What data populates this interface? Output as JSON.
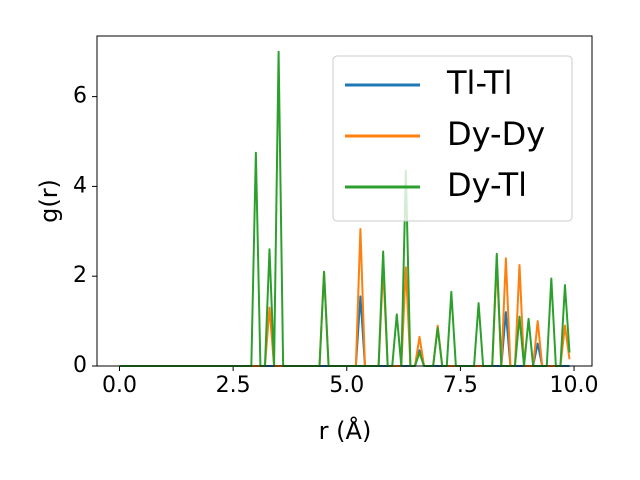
{
  "chart_data": {
    "type": "line",
    "xlabel": "r (Å)",
    "ylabel": "g(r)",
    "x": [
      0,
      0.1,
      0.2,
      0.3,
      0.4,
      0.5,
      0.6,
      0.7,
      0.8,
      0.9,
      1,
      1.1,
      1.2,
      1.3,
      1.4,
      1.5,
      1.6,
      1.7,
      1.8,
      1.9,
      2,
      2.1,
      2.2,
      2.3,
      2.4,
      2.5,
      2.6,
      2.7,
      2.8,
      2.9,
      3,
      3.1,
      3.2,
      3.3,
      3.4,
      3.5,
      3.6,
      3.7,
      3.8,
      3.9,
      4,
      4.1,
      4.2,
      4.3,
      4.4,
      4.5,
      4.6,
      4.7,
      4.8,
      4.9,
      5,
      5.1,
      5.2,
      5.3,
      5.4,
      5.5,
      5.6,
      5.7,
      5.8,
      5.9,
      6,
      6.1,
      6.2,
      6.3,
      6.4,
      6.5,
      6.6,
      6.7,
      6.8,
      6.9,
      7,
      7.1,
      7.2,
      7.3,
      7.4,
      7.5,
      7.6,
      7.7,
      7.8,
      7.9,
      8,
      8.1,
      8.2,
      8.3,
      8.4,
      8.5,
      8.6,
      8.7,
      8.8,
      8.9,
      9,
      9.1,
      9.2,
      9.3,
      9.4,
      9.5,
      9.6,
      9.7,
      9.8,
      9.9
    ],
    "series": [
      {
        "name": "Tl-Tl",
        "color": "#1f77b4",
        "values": [
          0,
          0,
          0,
          0,
          0,
          0,
          0,
          0,
          0,
          0,
          0,
          0,
          0,
          0,
          0,
          0,
          0,
          0,
          0,
          0,
          0,
          0,
          0,
          0,
          0,
          0,
          0,
          0,
          0,
          0,
          0,
          0,
          0,
          0,
          0,
          0,
          0,
          0,
          0,
          0,
          0,
          0,
          0,
          0,
          0,
          0,
          0,
          0,
          0,
          0,
          0,
          0,
          0,
          1.55,
          0,
          0,
          0,
          0,
          0,
          0,
          0,
          0,
          0,
          0,
          0,
          0,
          0.35,
          0,
          0,
          0,
          0,
          0,
          0,
          0,
          0,
          0,
          0,
          0,
          0,
          0,
          0,
          0,
          0,
          0,
          0,
          1.2,
          0,
          0,
          0,
          0,
          0,
          0,
          0.5,
          0,
          0,
          0,
          0,
          0,
          0,
          0
        ]
      },
      {
        "name": "Dy-Dy",
        "color": "#ff7f0e",
        "values": [
          0,
          0,
          0,
          0,
          0,
          0,
          0,
          0,
          0,
          0,
          0,
          0,
          0,
          0,
          0,
          0,
          0,
          0,
          0,
          0,
          0,
          0,
          0,
          0,
          0,
          0,
          0,
          0,
          0,
          0,
          0,
          0,
          0,
          1.3,
          0,
          0,
          0,
          0,
          0,
          0,
          0,
          0,
          0,
          0,
          0,
          2.1,
          0,
          0,
          0,
          0,
          0,
          0,
          0,
          3.05,
          0,
          0,
          0,
          0,
          2.2,
          0,
          0,
          0,
          0,
          2.2,
          0,
          0,
          0.65,
          0,
          0,
          0,
          0.9,
          0,
          0,
          0,
          0,
          0,
          0,
          0,
          0,
          0,
          0,
          0,
          0,
          2.3,
          0,
          2.4,
          0,
          0,
          2.25,
          0,
          0,
          0,
          1.0,
          0,
          0,
          0,
          0,
          0,
          0.9,
          0.15
        ]
      },
      {
        "name": "Dy-Tl",
        "color": "#2ca02c",
        "values": [
          0,
          0,
          0,
          0,
          0,
          0,
          0,
          0,
          0,
          0,
          0,
          0,
          0,
          0,
          0,
          0,
          0,
          0,
          0,
          0,
          0,
          0,
          0,
          0,
          0,
          0,
          0,
          0,
          0,
          0,
          4.75,
          0,
          0,
          2.6,
          0,
          7.0,
          0,
          0,
          0,
          0,
          0,
          0,
          0,
          0,
          0,
          2.1,
          0,
          0,
          0,
          0,
          0,
          0,
          0,
          0,
          0,
          0,
          0,
          0,
          2.55,
          0,
          0,
          1.15,
          0,
          4.35,
          0,
          0,
          0.3,
          0,
          0,
          0,
          0.85,
          0,
          0,
          1.65,
          0,
          0,
          0,
          0,
          0,
          1.4,
          0,
          0,
          0,
          2.5,
          0,
          0,
          0,
          0,
          1.1,
          0,
          1.05,
          0,
          0,
          0,
          0,
          1.95,
          0,
          0,
          1.8,
          0.3
        ]
      }
    ],
    "xlim": [
      -0.495,
      10.395
    ],
    "xticks": [
      {
        "value": 0,
        "label": "0.0"
      },
      2.5,
      {
        "value": 5,
        "label": "5.0"
      },
      7.5,
      {
        "value": 10,
        "label": "10.0"
      }
    ],
    "ylim": [
      0,
      7.35
    ],
    "yticks": [
      0,
      2,
      4,
      6
    ],
    "legend": "upper right"
  }
}
